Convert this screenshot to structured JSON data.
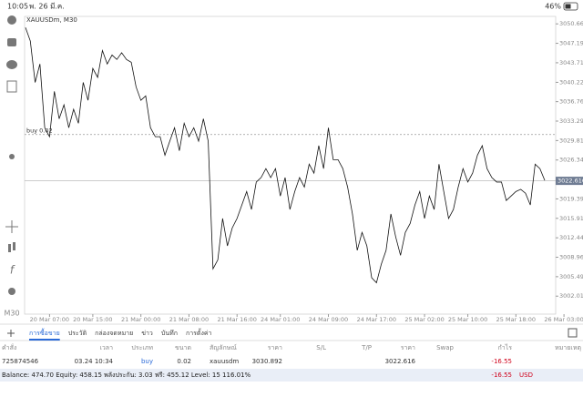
{
  "status": {
    "time": "10:05",
    "date": "พ. 26 มี.ค.",
    "battery": "46%"
  },
  "toolbar": {
    "timeframe": "M30"
  },
  "chart_data": {
    "type": "line",
    "title": "XAUUSDm, M30",
    "color": "#111111",
    "categories": [
      null,
      null,
      null,
      null,
      null,
      "20 Mar 07:00",
      null,
      null,
      null,
      null,
      null,
      null,
      null,
      null,
      "20 Mar 15:00",
      null,
      null,
      null,
      null,
      null,
      null,
      null,
      null,
      null,
      "21 Mar 00:00",
      null,
      null,
      null,
      null,
      null,
      null,
      null,
      null,
      null,
      "21 Mar 08:00",
      null,
      null,
      null,
      null,
      null,
      null,
      null,
      null,
      null,
      "21 Mar 16:00",
      null,
      null,
      null,
      null,
      null,
      null,
      null,
      null,
      "24 Mar 01:00",
      null,
      null,
      null,
      null,
      null,
      null,
      null,
      null,
      null,
      "24 Mar 09:00",
      null,
      null,
      null,
      null,
      null,
      null,
      null,
      null,
      null,
      "24 Mar 17:00",
      null,
      null,
      null,
      null,
      null,
      null,
      null,
      null,
      null,
      "25 Mar 02:00",
      null,
      null,
      null,
      null,
      null,
      null,
      null,
      null,
      "25 Mar 10:00",
      null,
      null,
      null,
      null,
      null,
      null,
      null,
      null,
      null,
      "25 Mar 18:00",
      null,
      null,
      null,
      null,
      null,
      null,
      null,
      null,
      null,
      "26 Mar 03:00"
    ],
    "values": [
      3050.0,
      3047.6,
      3040.2,
      3043.5,
      3032.1,
      3030.5,
      3038.6,
      3033.7,
      3036.2,
      3032.1,
      3035.4,
      3032.9,
      3040.2,
      3037.0,
      3042.7,
      3041.1,
      3045.9,
      3043.5,
      3045.1,
      3044.3,
      3045.5,
      3044.3,
      3043.8,
      3039.4,
      3037.0,
      3037.8,
      3032.1,
      3030.5,
      3030.5,
      3027.2,
      3029.7,
      3032.1,
      3028.0,
      3032.9,
      3030.5,
      3032.1,
      3029.7,
      3033.7,
      3029.7,
      3006.9,
      3008.5,
      3015.9,
      3011.0,
      3014.2,
      3015.9,
      3018.3,
      3020.7,
      3017.5,
      3022.4,
      3023.2,
      3024.8,
      3023.2,
      3024.8,
      3019.9,
      3023.2,
      3017.5,
      3020.7,
      3023.2,
      3021.5,
      3025.6,
      3024.0,
      3028.9,
      3024.8,
      3032.1,
      3026.4,
      3026.4,
      3024.8,
      3021.5,
      3016.7,
      3010.2,
      3013.4,
      3011.0,
      3005.3,
      3004.4,
      3007.7,
      3010.2,
      3016.7,
      3012.6,
      3009.3,
      3013.4,
      3015.0,
      3018.3,
      3020.7,
      3015.9,
      3019.9,
      3017.5,
      3025.6,
      3020.7,
      3015.9,
      3017.5,
      3021.5,
      3024.8,
      3022.4,
      3024.0,
      3027.2,
      3028.9,
      3024.8,
      3023.2,
      3022.4,
      3022.4,
      3019.1,
      3019.9,
      3020.7,
      3021.1,
      3020.4,
      3018.3,
      3025.6,
      3024.8,
      3022.7,
      null,
      null,
      null,
      null
    ],
    "ylim": [
      2998.8,
      3052.0
    ],
    "yticks": [
      3050.665,
      {
        "value": 3047.19,
        "label": "3047.190"
      },
      3043.715,
      {
        "value": 3040.22,
        "label": "3040.220"
      },
      3036.765,
      {
        "value": 3033.29,
        "label": "3033.290"
      },
      3029.815,
      {
        "value": 3026.34,
        "label": "3026.340"
      },
      {
        "value": 3019.39,
        "label": "3019.390"
      },
      3015.915,
      {
        "value": 3012.44,
        "label": "3012.440"
      },
      3008.965,
      {
        "value": 3005.49,
        "label": "3005.490"
      },
      3002.015
    ],
    "current_price": 3022.616,
    "order_line": {
      "label": "buy 0.02",
      "value": 3030.892
    }
  },
  "tabs": {
    "items": [
      "การซื้อขาย",
      "ประวัติ",
      "กล่องจดหมาย",
      "ข่าว",
      "บันทึก",
      "การตั้งค่า"
    ],
    "active": 0
  },
  "table": {
    "headers": [
      "คำสั่ง",
      "เวลา",
      "ประเภท",
      "ขนาด",
      "สัญลักษณ์",
      "ราคา",
      "S/L",
      "T/P",
      "ราคา",
      "Swap",
      "กำไร",
      "หมายเหตุ"
    ],
    "rows": [
      {
        "order": "725874546",
        "time": "03.24 10:34",
        "type": "buy",
        "volume": "0.02",
        "symbol": "xauusdm",
        "open_price": "3030.892",
        "current_price": "3022.616",
        "profit": "-16.55"
      }
    ]
  },
  "footer": {
    "summary": "Balance: 474.70 Equity: 458.15 พลังประกัน: 3.03 ฟรี: 455.12 Level: 15 116.01%",
    "profit": "-16.55",
    "currency": "USD"
  }
}
